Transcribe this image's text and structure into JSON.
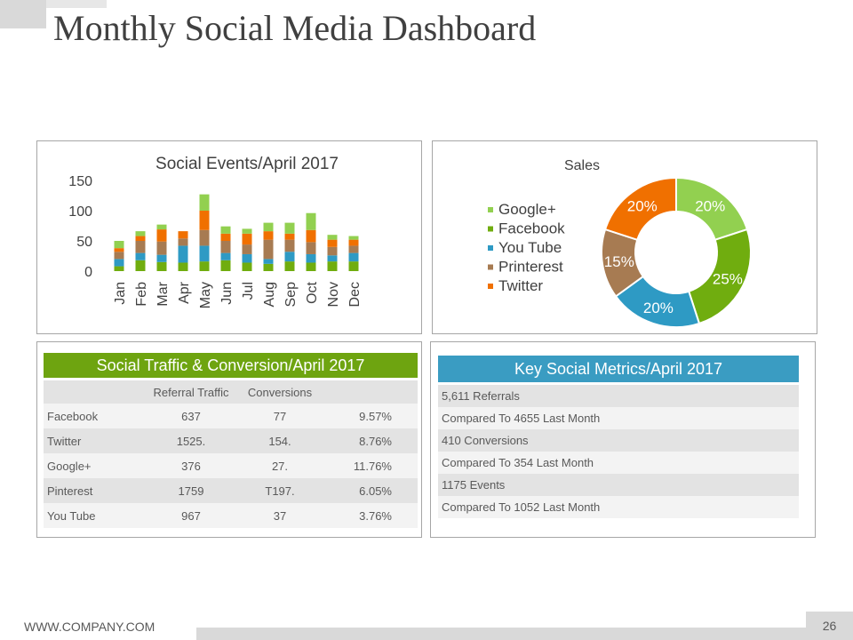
{
  "page": {
    "title": "Monthly Social Media Dashboard",
    "footer": "WWW.COMPANY.COM",
    "page_number": "26"
  },
  "colors": {
    "Google+": "#92d050",
    "Facebook": "#70ad0f",
    "You Tube": "#2e9ac4",
    "Printerest": "#a77b52",
    "Twitter": "#f07000"
  },
  "chart_data": [
    {
      "type": "bar",
      "stacked": true,
      "title": "Social Events/April 2017",
      "categories": [
        "Jan",
        "Feb",
        "Mar",
        "Apr",
        "May",
        "Jun",
        "Jul",
        "Aug",
        "Sep",
        "Oct",
        "Nov",
        "Dec"
      ],
      "series": [
        {
          "name": "Facebook",
          "values": [
            8,
            18,
            15,
            14,
            16,
            18,
            14,
            12,
            16,
            14,
            16,
            16
          ]
        },
        {
          "name": "You Tube",
          "values": [
            12,
            12,
            12,
            28,
            26,
            12,
            14,
            8,
            16,
            14,
            10,
            14
          ]
        },
        {
          "name": "Printerest",
          "values": [
            12,
            20,
            22,
            12,
            26,
            20,
            16,
            32,
            20,
            20,
            14,
            12
          ]
        },
        {
          "name": "Twitter",
          "values": [
            6,
            8,
            20,
            12,
            32,
            12,
            18,
            14,
            10,
            20,
            12,
            10
          ]
        },
        {
          "name": "Google+",
          "values": [
            12,
            8,
            8,
            0,
            27,
            12,
            8,
            14,
            18,
            28,
            8,
            6
          ]
        }
      ],
      "yticks": [
        0,
        50,
        100,
        150
      ],
      "ylim": [
        0,
        150
      ],
      "grid": false
    },
    {
      "type": "pie",
      "donut": true,
      "title": "Sales",
      "legend_position": "left",
      "labels": [
        "Google+",
        "Facebook",
        "You Tube",
        "Printerest",
        "Twitter"
      ],
      "values": [
        20,
        25,
        20,
        15,
        20
      ],
      "value_labels": [
        "20%",
        "25%",
        "20%",
        "15%",
        "20%"
      ]
    }
  ],
  "traffic": {
    "title": "Social Traffic & Conversion/April 2017",
    "headers": [
      "",
      "Referral Traffic",
      "Conversions",
      ""
    ],
    "rows": [
      [
        "Facebook",
        "637",
        "77",
        "9.57%"
      ],
      [
        "Twitter",
        "1525.",
        "154.",
        "8.76%"
      ],
      [
        "Google+",
        "376",
        "27.",
        "11.76%"
      ],
      [
        "Pinterest",
        "1759",
        "T197.",
        "6.05%"
      ],
      [
        "You Tube",
        "967",
        "37",
        "3.76%"
      ]
    ]
  },
  "metrics": {
    "title": "Key Social Metrics/April 2017",
    "rows": [
      "5,611 Referrals",
      "Compared To 4655 Last Month",
      "410 Conversions",
      "Compared To 354 Last Month",
      "1175 Events",
      "Compared To 1052 Last Month"
    ]
  }
}
